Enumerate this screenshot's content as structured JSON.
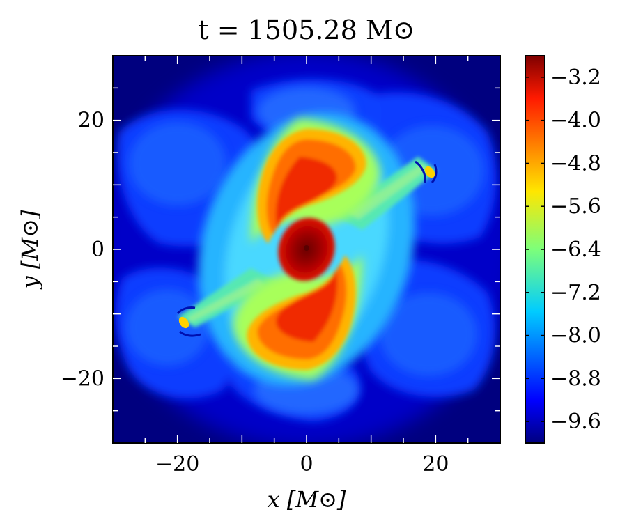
{
  "chart_data": {
    "type": "heatmap",
    "title": "t = 1505.28 M⊙",
    "xlabel": "x [M⊙]",
    "ylabel": "y [M⊙]",
    "xlim": [
      -30,
      30
    ],
    "ylim": [
      -30,
      30
    ],
    "x_ticks": [
      -20,
      0,
      20
    ],
    "y_ticks": [
      -20,
      0,
      20
    ],
    "x_tick_labels": [
      "−20",
      "0",
      "20"
    ],
    "y_tick_labels": [
      "−20",
      "0",
      "20"
    ],
    "colorbar": {
      "colormap": "jet",
      "range": [
        -10.0,
        -2.8
      ],
      "ticks": [
        -3.2,
        -4.0,
        -4.8,
        -5.6,
        -6.4,
        -7.2,
        -8.0,
        -8.8,
        -9.6
      ],
      "tick_labels": [
        "−3.2",
        "−4.0",
        "−4.8",
        "−5.6",
        "−6.4",
        "−7.2",
        "−8.0",
        "−8.8",
        "−9.6"
      ]
    },
    "features": {
      "central_core_peak": -2.9,
      "spiral_arm_max_radius": 14,
      "tidal_tail_ends": [
        [
          19.5,
          12
        ],
        [
          -19,
          -11.5
        ]
      ],
      "ejecta_lobes": [
        "upper-left",
        "upper-right",
        "lower-left",
        "lower-right"
      ],
      "background_level": -10.0
    }
  }
}
